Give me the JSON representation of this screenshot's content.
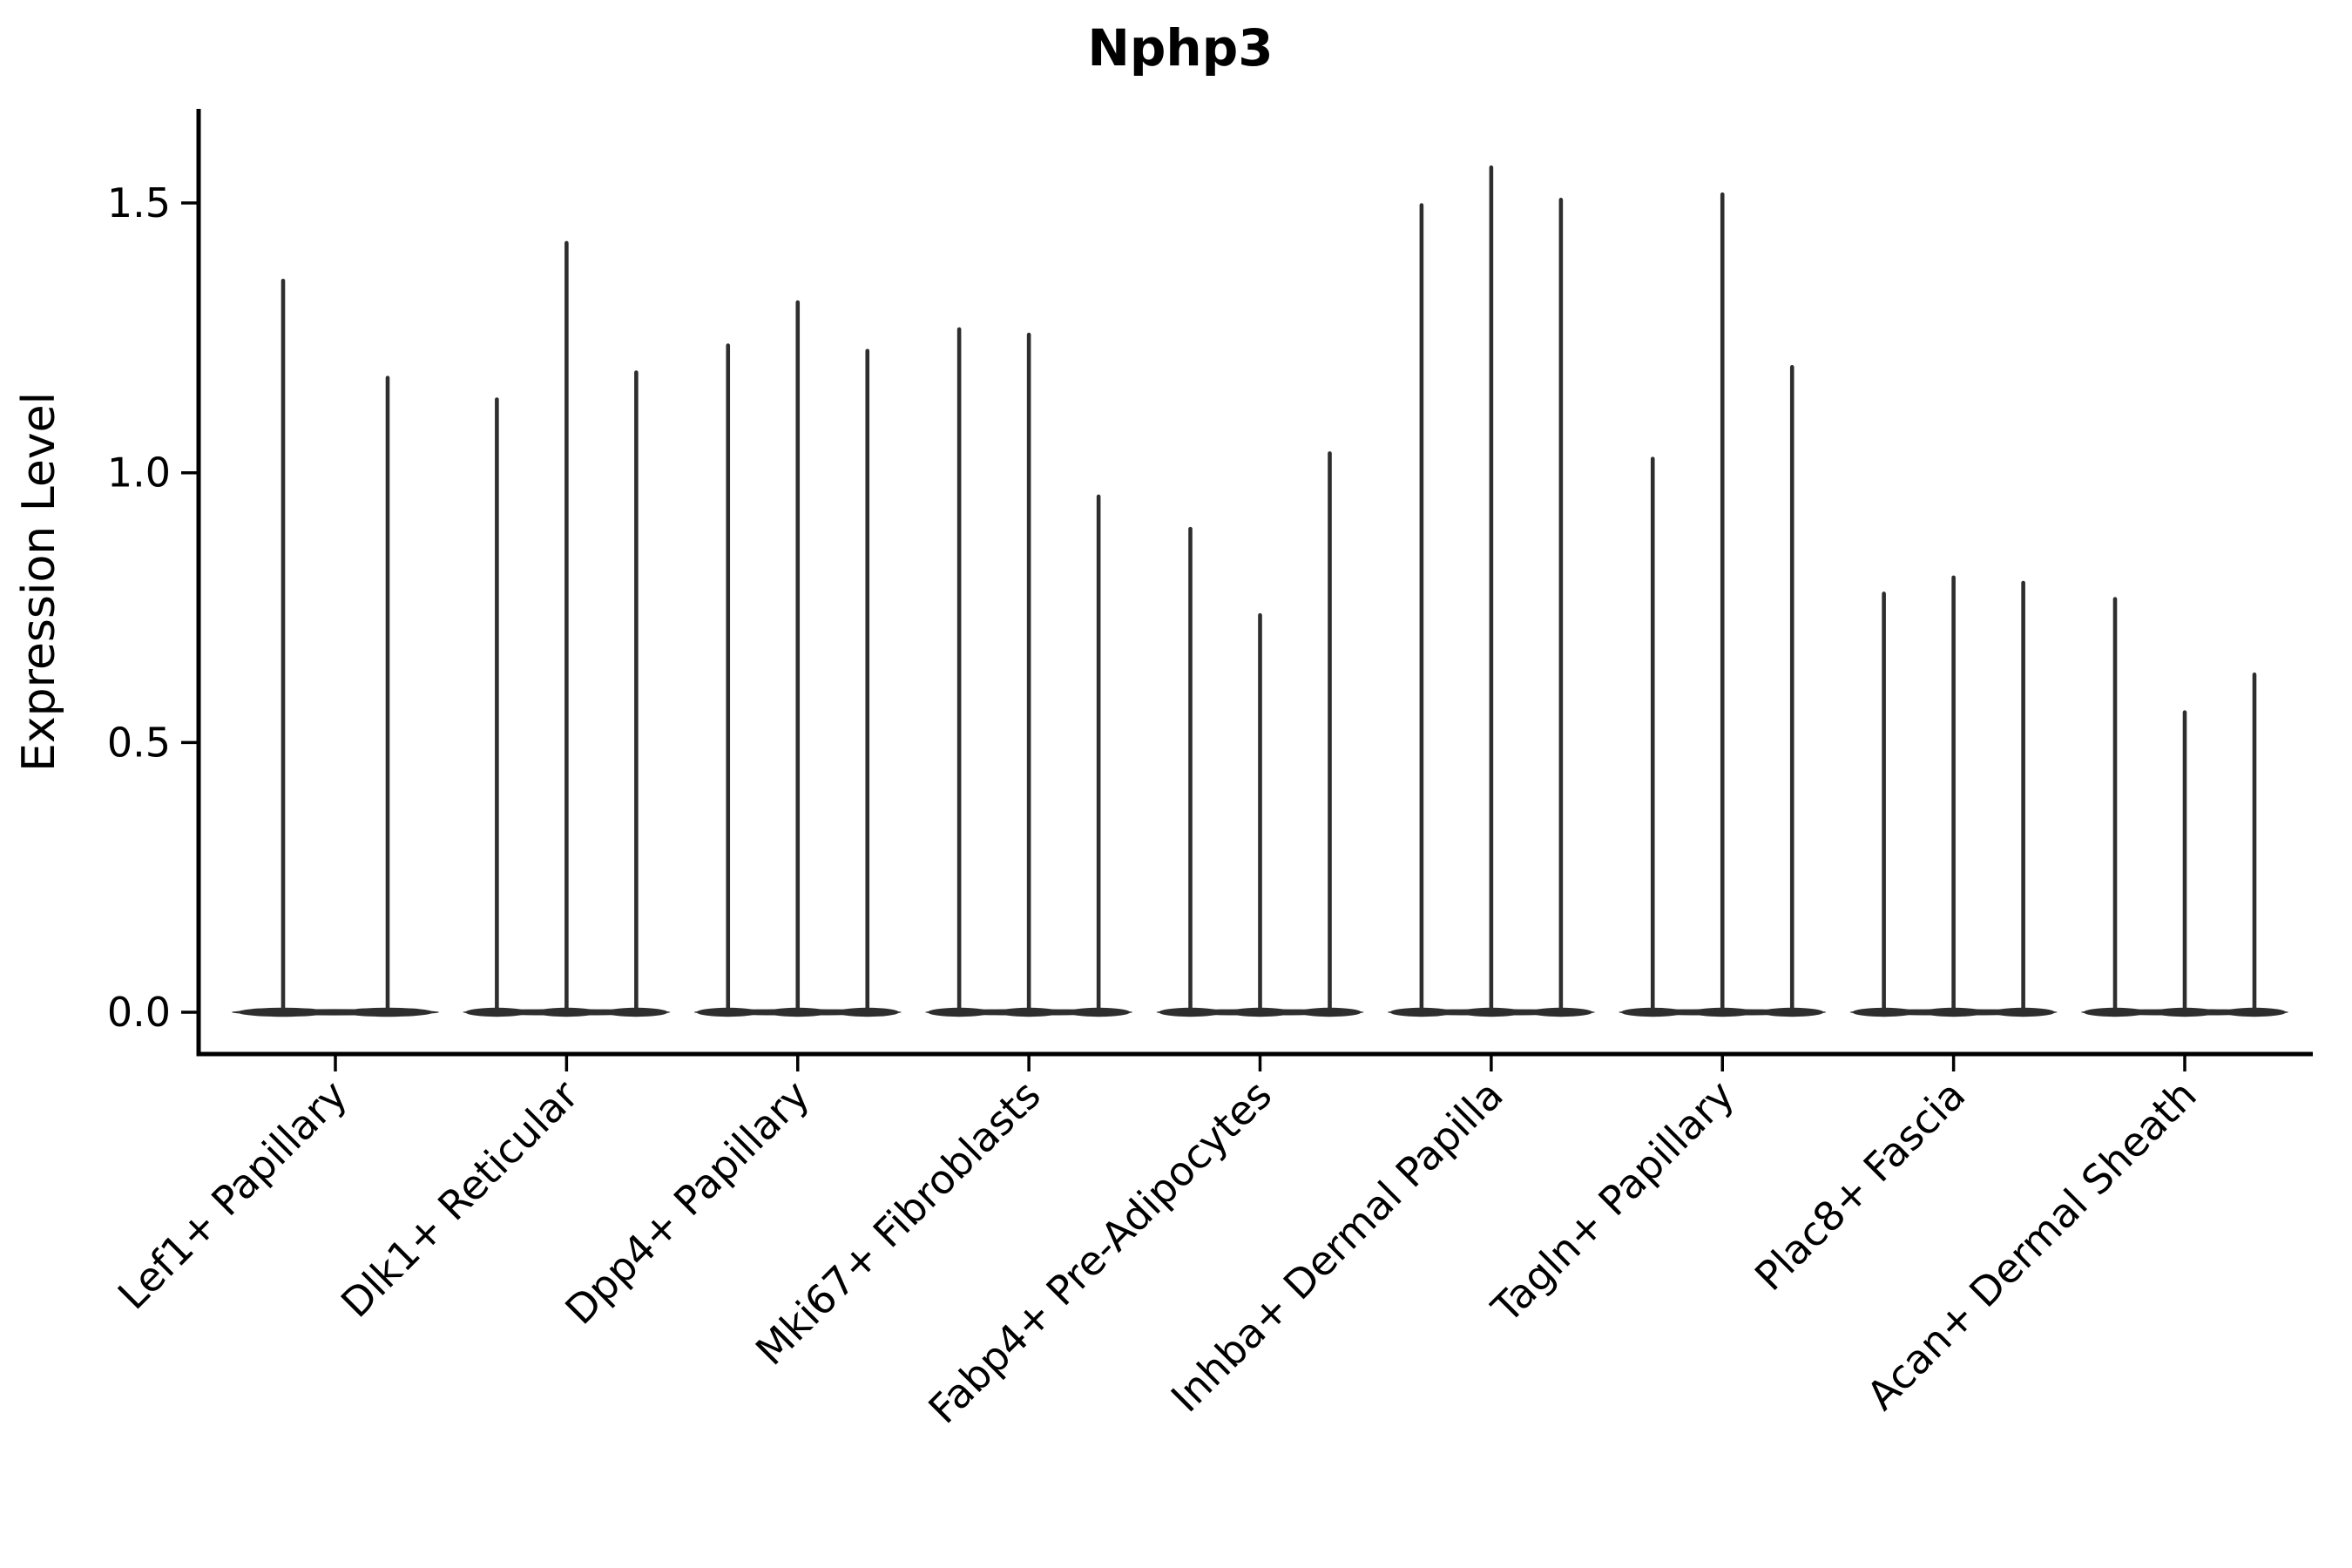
{
  "title": "Nphp3",
  "chart_data": {
    "type": "violin",
    "title": "Nphp3",
    "xlabel": "",
    "ylabel": "Expression Level",
    "ytick_labels": [
      "0.0",
      "0.5",
      "1.0",
      "1.5"
    ],
    "ytick_values": [
      0.0,
      0.5,
      1.0,
      1.5
    ],
    "ylim": [
      -0.08,
      1.67
    ],
    "grid": false,
    "legend_position": "none",
    "violin_style": "needle: flat base at 0 with thin spike up to the maximum",
    "violin_color": "#2e2e2e",
    "axis_color": "#000000",
    "categories": [
      "Lef1+ Papillary",
      "Dlk1+ Reticular",
      "Dpp4+ Papillary",
      "Mki67+ Fibroblasts",
      "Fabp4+ Pre-Adipocytes",
      "Inhba+ Dermal Papilla",
      "Tagln+ Papillary",
      "Plac8+ Fascia",
      "Acan+ Dermal Sheath"
    ],
    "series_maxima": [
      [
        1.36,
        1.18
      ],
      [
        1.14,
        1.43,
        1.19
      ],
      [
        1.24,
        1.32,
        1.23
      ],
      [
        1.27,
        1.26,
        0.96
      ],
      [
        0.9,
        0.74,
        1.04
      ],
      [
        1.5,
        1.57,
        1.51
      ],
      [
        1.03,
        1.52,
        1.2
      ],
      [
        0.78,
        0.81,
        0.8
      ],
      [
        0.77,
        0.56,
        0.63
      ]
    ],
    "baseline_value": 0.0
  }
}
